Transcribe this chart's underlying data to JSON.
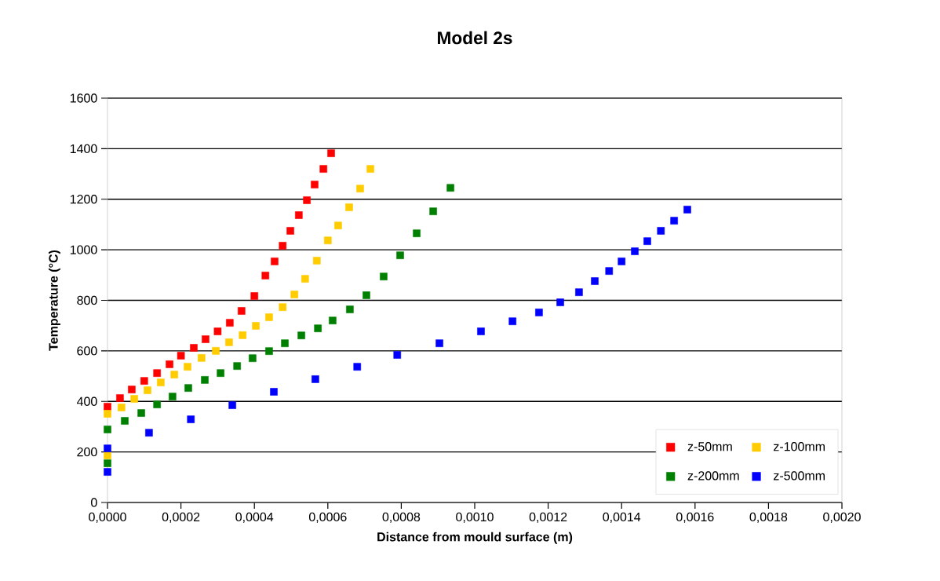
{
  "chart_data": {
    "type": "scatter",
    "title": "Model 2s",
    "xlabel": "Distance from mould surface (m)",
    "ylabel": "Temperature (°C)",
    "xlim": [
      0,
      0.002
    ],
    "ylim": [
      0,
      1600
    ],
    "xticks": [
      {
        "value": 0,
        "label": "0,0000"
      },
      {
        "value": 0.0002,
        "label": "0,0002"
      },
      {
        "value": 0.0004,
        "label": "0,0004"
      },
      {
        "value": 0.0006,
        "label": "0,0006"
      },
      {
        "value": 0.0008,
        "label": "0,0008"
      },
      {
        "value": 0.001,
        "label": "0,0010"
      },
      {
        "value": 0.0012,
        "label": "0,0012"
      },
      {
        "value": 0.0014,
        "label": "0,0014"
      },
      {
        "value": 0.0016,
        "label": "0,0016"
      },
      {
        "value": 0.0018,
        "label": "0,0018"
      },
      {
        "value": 0.002,
        "label": "0,0020"
      }
    ],
    "yticks": [
      0,
      200,
      400,
      600,
      800,
      1000,
      1200,
      1400,
      1600
    ],
    "grid": "y",
    "legend": "bottom right",
    "marker": "square",
    "series": [
      {
        "name": "z-50mm",
        "color": "#ff0000",
        "x": [
          0,
          3.4e-05,
          6.6e-05,
          0.0001,
          0.000135,
          0.000169,
          0.0002,
          0.000235,
          0.000267,
          0.0003,
          0.000333,
          0.000365,
          0.0004,
          0.00043,
          0.000455,
          0.000477,
          0.000498,
          0.000521,
          0.000543,
          0.000564,
          0.000588,
          0.000609
        ],
        "values": [
          379,
          413,
          447,
          481,
          512,
          547,
          581,
          612,
          646,
          677,
          711,
          758,
          817,
          898,
          954,
          1016,
          1075,
          1137,
          1196,
          1258,
          1320,
          1382
        ]
      },
      {
        "name": "z-100mm",
        "color": "#ffcc00",
        "x": [
          0,
          0,
          3.8e-05,
          7.3e-05,
          0.000109,
          0.000145,
          0.000182,
          0.000218,
          0.000256,
          0.000295,
          0.000331,
          0.000368,
          0.000404,
          0.00044,
          0.000477,
          0.000509,
          0.000538,
          0.00057,
          0.0006,
          0.000628,
          0.000658,
          0.000688,
          0.000716
        ],
        "values": [
          351,
          186,
          376,
          410,
          444,
          475,
          506,
          537,
          572,
          600,
          634,
          662,
          699,
          733,
          773,
          823,
          885,
          957,
          1037,
          1096,
          1168,
          1242,
          1320
        ]
      },
      {
        "name": "z-200mm",
        "color": "#008000",
        "x": [
          0,
          0,
          4.7e-05,
          9.2e-05,
          0.000135,
          0.000177,
          0.00022,
          0.000265,
          0.000308,
          0.000353,
          0.000395,
          0.00044,
          0.000483,
          0.000528,
          0.000573,
          0.000613,
          0.00066,
          0.000705,
          0.000752,
          0.000797,
          0.000842,
          0.000887,
          0.000934
        ],
        "values": [
          289,
          155,
          323,
          354,
          388,
          419,
          453,
          485,
          512,
          540,
          571,
          599,
          630,
          661,
          689,
          720,
          764,
          820,
          894,
          978,
          1065,
          1152,
          1245
        ]
      },
      {
        "name": "z-500mm",
        "color": "#0000ff",
        "x": [
          0,
          0,
          0.000113,
          0.000227,
          0.00034,
          0.000453,
          0.000566,
          0.00068,
          0.000789,
          0.000904,
          0.001017,
          0.001103,
          0.001175,
          0.001233,
          0.001284,
          0.001327,
          0.001366,
          0.0014,
          0.001436,
          0.00147,
          0.001507,
          0.001543,
          0.001579
        ],
        "values": [
          214,
          121,
          276,
          329,
          385,
          438,
          488,
          537,
          584,
          630,
          677,
          717,
          752,
          792,
          832,
          876,
          916,
          954,
          994,
          1034,
          1075,
          1115,
          1159
        ]
      }
    ]
  }
}
